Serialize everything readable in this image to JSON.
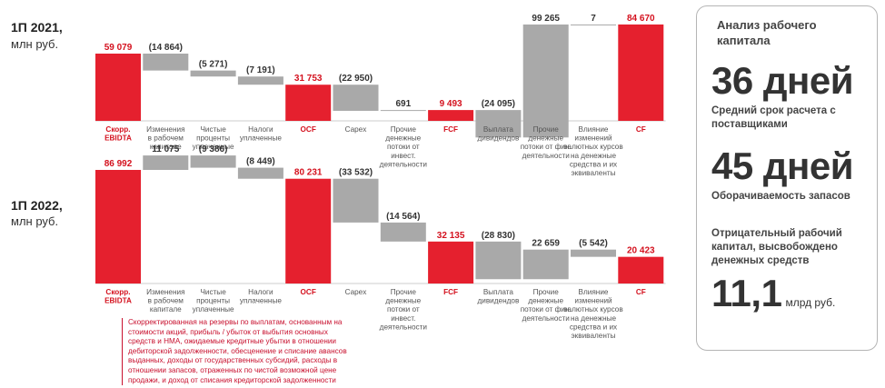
{
  "chart_data": [
    {
      "type": "waterfall",
      "title": "1П 2021,",
      "unit": "млн руб.",
      "categories": [
        "Скорр. EBIDTA",
        "Изменения в рабочем капитале",
        "Чистые проценты уплаченные",
        "Налоги уплаченные",
        "OCF",
        "Capex",
        "Прочие денежные потоки от инвест. деятельности",
        "FCF",
        "Выплата дивидендов",
        "Прочие денежные потоки от фин. деятельности",
        "Влияние изменений валютных курсов на денежные средства и их эквиваленты",
        "CF"
      ],
      "values": [
        59079,
        -14864,
        -5271,
        -7191,
        31753,
        -22950,
        691,
        9493,
        -24095,
        99265,
        7,
        84670
      ],
      "data_labels": [
        "59 079",
        "(14 864)",
        "(5 271)",
        "(7 191)",
        "31 753",
        "(22 950)",
        "691",
        "9 493",
        "(24 095)",
        "99 265",
        "7",
        "84 670"
      ],
      "kinds": [
        "total",
        "delta",
        "delta",
        "delta",
        "total",
        "delta",
        "delta",
        "total",
        "delta",
        "delta",
        "delta",
        "total"
      ]
    },
    {
      "type": "waterfall",
      "title": "1П 2022,",
      "unit": "млн руб.",
      "categories": [
        "Скорр. EBIDTA",
        "Изменения в рабочем капитале",
        "Чистые проценты уплаченные",
        "Налоги уплаченные",
        "OCF",
        "Capex",
        "Прочие денежные потоки от инвест. деятельности",
        "FCF",
        "Выплата дивидендов",
        "Прочие денежные потоки от фин. деятельности",
        "Влияние изменений валютных курсов на денежные средства и их эквиваленты",
        "CF"
      ],
      "values": [
        86992,
        11075,
        -9386,
        -8449,
        80231,
        -33532,
        -14564,
        32135,
        -28830,
        22659,
        -5542,
        20423
      ],
      "data_labels": [
        "86 992",
        "11 075",
        "(9 386)",
        "(8 449)",
        "80 231",
        "(33 532)",
        "(14 564)",
        "32 135",
        "(28 830)",
        "22 659",
        "(5 542)",
        "20 423"
      ],
      "kinds": [
        "total",
        "delta",
        "delta",
        "delta",
        "total",
        "delta",
        "delta",
        "total",
        "delta",
        "delta",
        "delta",
        "total"
      ]
    }
  ],
  "colors": {
    "total": "#e5202e",
    "delta": "#a9a9a9",
    "axis": "#cccccc",
    "total_label": "#d4111e",
    "label": "#333333",
    "category": "#555555"
  },
  "footnote": "Скорректированная на резервы по выплатам, основанным на стоимости акций, прибыль / убыток от выбытия основных средств и НМА, ожидаемые кредитные убытки в отношении дебиторской задолженности, обесценение и списание авансов выданных, доходы от государственных субсидий, расходы в отношении запасов, отраженных по чистой возможной цене продажи, и доход от списания кредиторской задолженности",
  "panel": {
    "title": "Анализ рабочего капитала",
    "kpi1_value": "36 дней",
    "kpi1_label": "Средний срок расчета с поставщиками",
    "kpi2_value": "45 дней",
    "kpi2_label": "Оборачиваемость запасов",
    "kpi3_label": "Отрицательный рабочий капитал, высвобождено денежных средств",
    "kpi3_value": "11,1",
    "kpi3_unit": "млрд руб."
  }
}
